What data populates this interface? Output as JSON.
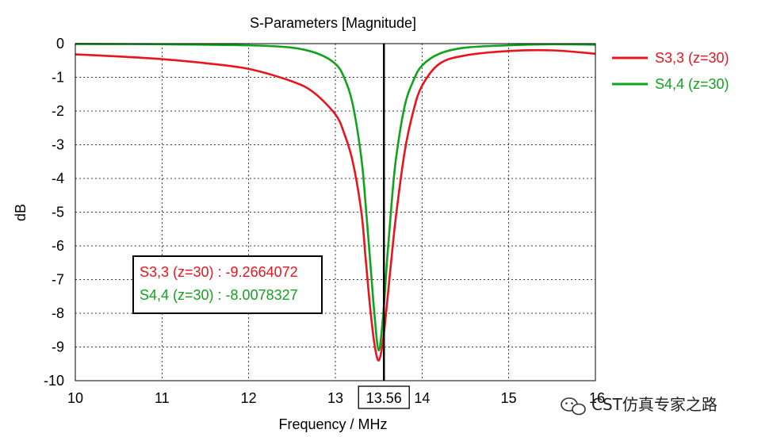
{
  "chart_data": {
    "type": "line",
    "title": "S-Parameters [Magnitude]",
    "xlabel": "Frequency / MHz",
    "ylabel": "dB",
    "xlim": [
      10,
      16
    ],
    "ylim": [
      -10,
      0
    ],
    "x_ticks": [
      "10",
      "11",
      "12",
      "13",
      "14",
      "15",
      "16"
    ],
    "y_ticks": [
      "0",
      "-1",
      "-2",
      "-3",
      "-4",
      "-5",
      "-6",
      "-7",
      "-8",
      "-9",
      "-10"
    ],
    "grid": true,
    "legend_position": "right",
    "series": [
      {
        "name": "S3,3 (z=30)",
        "color": "#e8141e",
        "x": [
          10,
          10.5,
          11,
          11.5,
          12,
          12.5,
          12.75,
          13,
          13.1,
          13.2,
          13.3,
          13.35,
          13.4,
          13.45,
          13.5,
          13.55,
          13.6,
          13.65,
          13.7,
          13.8,
          13.9,
          14,
          14.2,
          14.5,
          15,
          15.5,
          16
        ],
        "y": [
          -0.32,
          -0.38,
          -0.46,
          -0.58,
          -0.75,
          -1.12,
          -1.45,
          -2.1,
          -2.65,
          -3.5,
          -5.0,
          -6.4,
          -7.8,
          -8.9,
          -9.4,
          -8.8,
          -7.6,
          -6.3,
          -5.1,
          -3.2,
          -2.0,
          -1.25,
          -0.6,
          -0.35,
          -0.22,
          -0.2,
          -0.3
        ]
      },
      {
        "name": "S4,4 (z=30)",
        "color": "#12a21e",
        "x": [
          10,
          11,
          12,
          12.5,
          12.8,
          13,
          13.1,
          13.2,
          13.3,
          13.35,
          13.4,
          13.45,
          13.5,
          13.55,
          13.6,
          13.65,
          13.7,
          13.8,
          13.9,
          14,
          14.2,
          14.5,
          15,
          15.5,
          16
        ],
        "y": [
          -0.01,
          -0.02,
          -0.05,
          -0.12,
          -0.3,
          -0.6,
          -1.0,
          -1.8,
          -3.4,
          -4.8,
          -6.4,
          -8.0,
          -9.1,
          -8.1,
          -6.3,
          -4.7,
          -3.4,
          -1.85,
          -1.1,
          -0.65,
          -0.3,
          -0.12,
          -0.05,
          -0.02,
          -0.03
        ]
      }
    ],
    "marker": {
      "x": 13.56,
      "x_label": "13.56",
      "readouts": [
        {
          "text": "S3,3 (z=30) : -9.2664072",
          "color": "#e8141e"
        },
        {
          "text": "S4,4 (z=30) : -8.0078327",
          "color": "#12a21e"
        }
      ]
    }
  },
  "watermark": {
    "text": "CST仿真专家之路",
    "icon": "wechat-icon"
  }
}
